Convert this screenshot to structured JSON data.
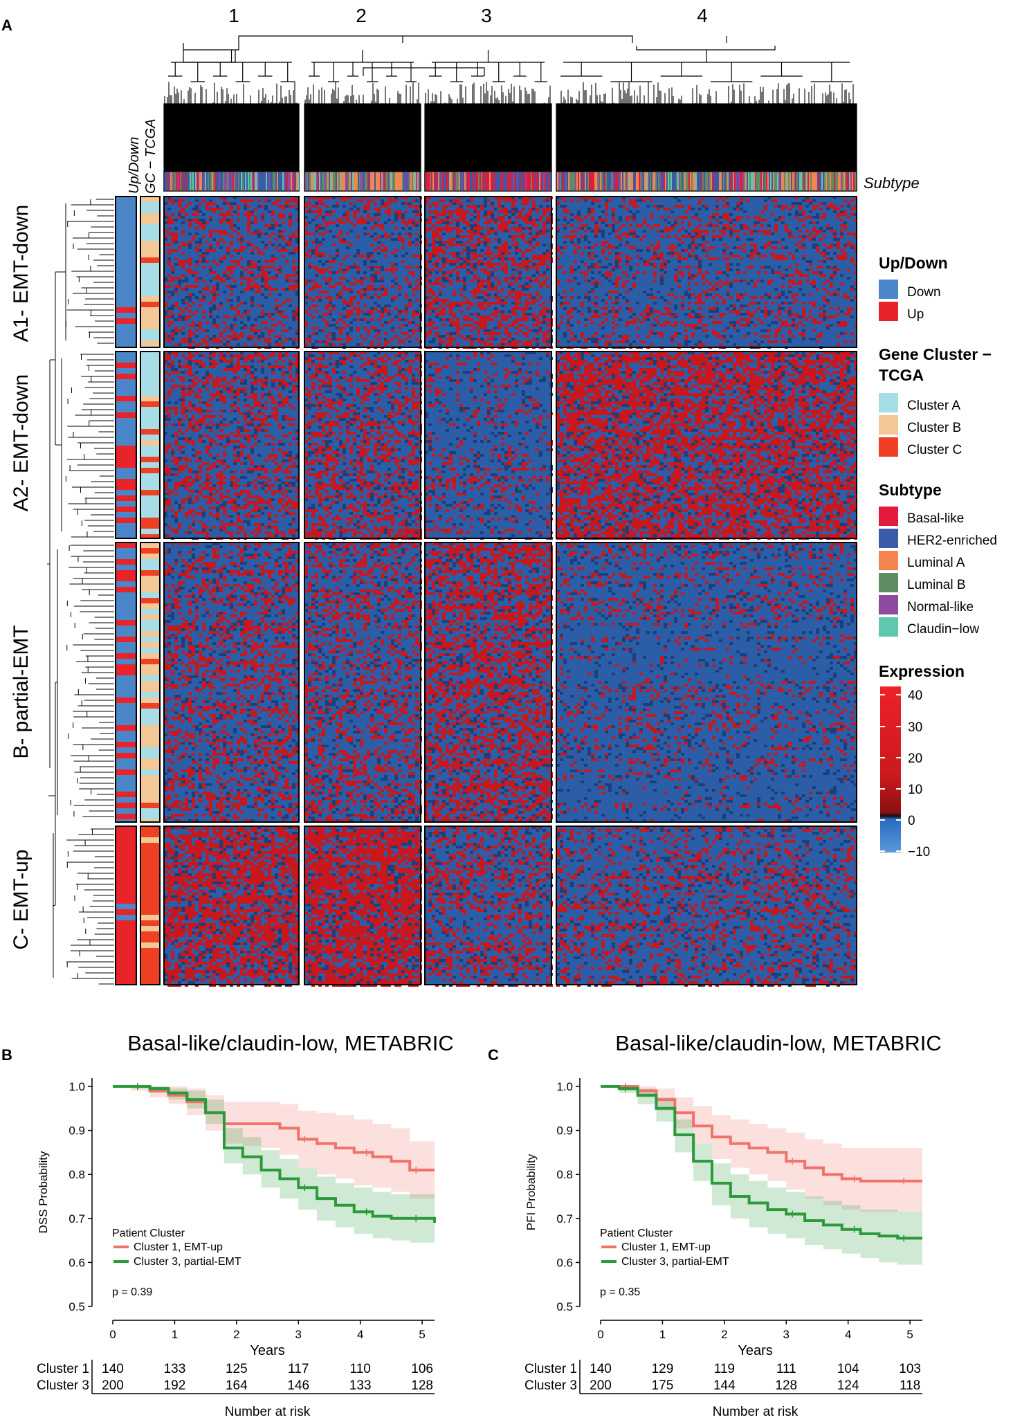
{
  "panels": {
    "a": "A",
    "b": "B",
    "c": "C"
  },
  "heatmap": {
    "column_clusters": [
      "1",
      "2",
      "3",
      "4"
    ],
    "top_annotation_labels": {
      "updown": "Up/Down",
      "gc": "GC − TCGA"
    },
    "subtype_label": "Subtype",
    "row_clusters": [
      "A1- EMT-down",
      "A2- EMT-down",
      "B- partial-EMT",
      "C- EMT-up"
    ],
    "legend": {
      "updown_title": "Up/Down",
      "updown_items": [
        {
          "label": "Down",
          "color": "#4a86c8"
        },
        {
          "label": "Up",
          "color": "#e8232a"
        }
      ],
      "gc_title_line1": "Gene Cluster −",
      "gc_title_line2": "TCGA",
      "gc_items": [
        {
          "label": "Cluster A",
          "color": "#a6dde6"
        },
        {
          "label": "Cluster B",
          "color": "#f3c896"
        },
        {
          "label": "Cluster C",
          "color": "#ef4023"
        }
      ],
      "subtype_title": "Subtype",
      "subtype_items": [
        {
          "label": "Basal-like",
          "color": "#e41a3c"
        },
        {
          "label": "HER2-enriched",
          "color": "#3a5ba8"
        },
        {
          "label": "Luminal A",
          "color": "#f4844c"
        },
        {
          "label": "Luminal B",
          "color": "#5e8c64"
        },
        {
          "label": "Normal-like",
          "color": "#8e4a9e"
        },
        {
          "label": "Claudin−low",
          "color": "#5cc8b0"
        }
      ],
      "expression_title": "Expression",
      "expression_ticks": [
        "40",
        "30",
        "20",
        "10",
        "0",
        "−10"
      ]
    }
  },
  "chart_data": [
    {
      "type": "line",
      "title": "Basal-like/claudin-low, METABRIC",
      "xlabel": "Years",
      "ylabel": "DSS Probability",
      "xlim": [
        0,
        5.2
      ],
      "ylim": [
        0.5,
        1.0
      ],
      "x_ticks": [
        "0",
        "1",
        "2",
        "3",
        "4",
        "5"
      ],
      "y_ticks": [
        "1.0",
        "0.9",
        "0.8",
        "0.7",
        "0.6",
        "0.5"
      ],
      "legend_title": "Patient Cluster",
      "series": [
        {
          "name": "Cluster 1, EMT-up",
          "color": "#f0726a",
          "x": [
            0,
            0.3,
            0.6,
            0.9,
            1.2,
            1.5,
            1.8,
            2.1,
            2.4,
            2.7,
            3.0,
            3.3,
            3.6,
            3.9,
            4.2,
            4.5,
            4.8,
            5.2
          ],
          "y": [
            1.0,
            1.0,
            0.99,
            0.98,
            0.965,
            0.94,
            0.915,
            0.915,
            0.915,
            0.905,
            0.88,
            0.87,
            0.86,
            0.85,
            0.84,
            0.83,
            0.81,
            0.81
          ],
          "lower": [
            1.0,
            0.99,
            0.975,
            0.96,
            0.935,
            0.9,
            0.87,
            0.865,
            0.86,
            0.845,
            0.815,
            0.8,
            0.79,
            0.775,
            0.77,
            0.76,
            0.745,
            0.745
          ],
          "upper": [
            1.0,
            1.0,
            1.0,
            1.0,
            0.995,
            0.98,
            0.965,
            0.965,
            0.965,
            0.96,
            0.945,
            0.94,
            0.935,
            0.925,
            0.915,
            0.905,
            0.875,
            0.875
          ]
        },
        {
          "name": "Cluster 3, partial-EMT",
          "color": "#2a9a3a",
          "x": [
            0,
            0.3,
            0.6,
            0.9,
            1.2,
            1.5,
            1.8,
            2.1,
            2.4,
            2.7,
            3.0,
            3.3,
            3.6,
            3.9,
            4.2,
            4.5,
            4.8,
            5.2
          ],
          "y": [
            1.0,
            1.0,
            0.995,
            0.985,
            0.97,
            0.94,
            0.86,
            0.84,
            0.81,
            0.79,
            0.77,
            0.745,
            0.73,
            0.715,
            0.705,
            0.7,
            0.7,
            0.69
          ],
          "lower": [
            1.0,
            0.995,
            0.985,
            0.97,
            0.95,
            0.915,
            0.825,
            0.8,
            0.77,
            0.745,
            0.72,
            0.695,
            0.68,
            0.665,
            0.655,
            0.65,
            0.645,
            0.63
          ],
          "upper": [
            1.0,
            1.0,
            1.0,
            0.995,
            0.99,
            0.97,
            0.905,
            0.885,
            0.855,
            0.835,
            0.815,
            0.795,
            0.78,
            0.77,
            0.76,
            0.755,
            0.755,
            0.75
          ]
        }
      ],
      "annotation": "p = 0.39",
      "risk_table": {
        "title": "Number at risk",
        "rows": [
          {
            "label": "Cluster 1",
            "values": [
              "140",
              "133",
              "125",
              "117",
              "110",
              "106"
            ]
          },
          {
            "label": "Cluster 3",
            "values": [
              "200",
              "192",
              "164",
              "146",
              "133",
              "128"
            ]
          }
        ]
      }
    },
    {
      "type": "line",
      "title": "Basal-like/claudin-low, METABRIC",
      "xlabel": "Years",
      "ylabel": "PFI Probability",
      "xlim": [
        0,
        5.2
      ],
      "ylim": [
        0.5,
        1.0
      ],
      "x_ticks": [
        "0",
        "1",
        "2",
        "3",
        "4",
        "5"
      ],
      "y_ticks": [
        "1.0",
        "0.9",
        "0.8",
        "0.7",
        "0.6",
        "0.5"
      ],
      "legend_title": "Patient Cluster",
      "series": [
        {
          "name": "Cluster 1, EMT-up",
          "color": "#f0726a",
          "x": [
            0,
            0.3,
            0.6,
            0.9,
            1.2,
            1.5,
            1.8,
            2.1,
            2.4,
            2.7,
            3.0,
            3.3,
            3.6,
            3.9,
            4.2,
            4.5,
            4.8,
            5.2
          ],
          "y": [
            1.0,
            1.0,
            0.99,
            0.97,
            0.94,
            0.91,
            0.885,
            0.87,
            0.86,
            0.85,
            0.83,
            0.815,
            0.8,
            0.79,
            0.785,
            0.785,
            0.785,
            0.785
          ],
          "lower": [
            1.0,
            0.99,
            0.975,
            0.945,
            0.905,
            0.87,
            0.835,
            0.815,
            0.8,
            0.785,
            0.765,
            0.745,
            0.73,
            0.72,
            0.715,
            0.715,
            0.715,
            0.715
          ],
          "upper": [
            1.0,
            1.0,
            1.0,
            0.995,
            0.975,
            0.955,
            0.935,
            0.925,
            0.915,
            0.905,
            0.895,
            0.88,
            0.87,
            0.86,
            0.86,
            0.86,
            0.86,
            0.86
          ]
        },
        {
          "name": "Cluster 3, partial-EMT",
          "color": "#2a9a3a",
          "x": [
            0,
            0.3,
            0.6,
            0.9,
            1.2,
            1.5,
            1.8,
            2.1,
            2.4,
            2.7,
            3.0,
            3.3,
            3.6,
            3.9,
            4.2,
            4.5,
            4.8,
            5.2
          ],
          "y": [
            1.0,
            0.995,
            0.98,
            0.95,
            0.89,
            0.83,
            0.78,
            0.75,
            0.735,
            0.72,
            0.71,
            0.695,
            0.685,
            0.675,
            0.665,
            0.66,
            0.655,
            0.655
          ],
          "lower": [
            1.0,
            0.985,
            0.96,
            0.92,
            0.85,
            0.785,
            0.73,
            0.7,
            0.68,
            0.665,
            0.655,
            0.64,
            0.63,
            0.62,
            0.61,
            0.6,
            0.595,
            0.595
          ],
          "upper": [
            1.0,
            1.0,
            0.995,
            0.975,
            0.925,
            0.87,
            0.825,
            0.8,
            0.785,
            0.77,
            0.76,
            0.75,
            0.74,
            0.73,
            0.72,
            0.72,
            0.715,
            0.715
          ]
        }
      ],
      "annotation": "p = 0.35",
      "risk_table": {
        "title": "Number at risk",
        "rows": [
          {
            "label": "Cluster 1",
            "values": [
              "140",
              "129",
              "119",
              "111",
              "104",
              "103"
            ]
          },
          {
            "label": "Cluster 3",
            "values": [
              "200",
              "175",
              "144",
              "128",
              "124",
              "118"
            ]
          }
        ]
      }
    }
  ]
}
